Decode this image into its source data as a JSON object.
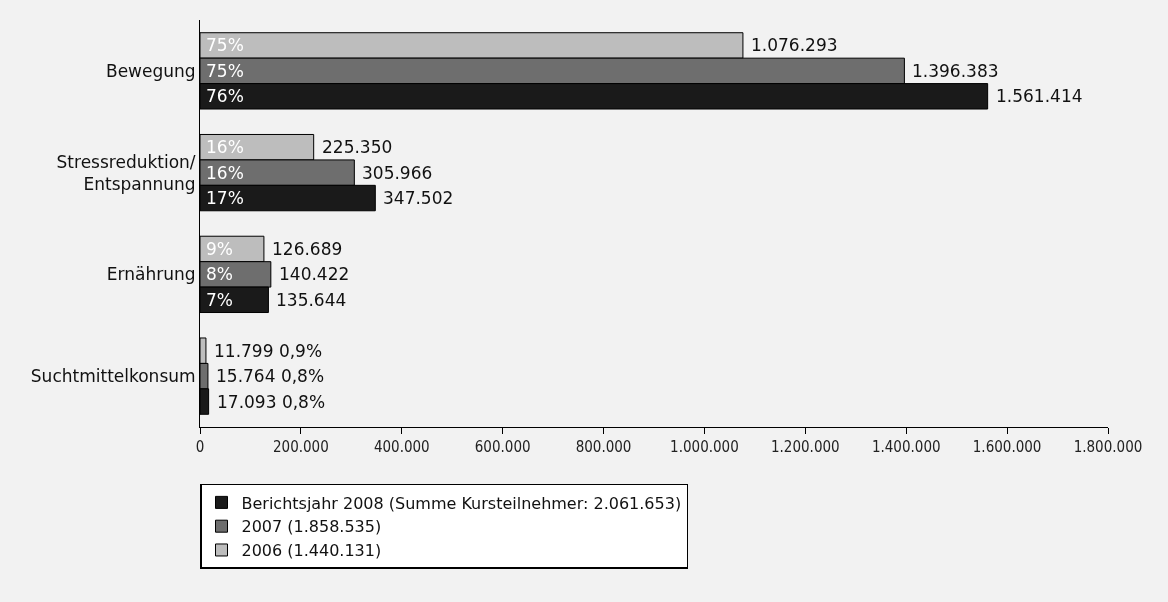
{
  "chart_data": {
    "type": "bar",
    "orientation": "horizontal",
    "categories": [
      "Bewegung",
      "Stressreduktion/\nEntspannung",
      "Ernährung",
      "Suchtmittelkonsum"
    ],
    "series": [
      {
        "name": "2006 (1.440.131)",
        "color": "#bdbdbd",
        "values": [
          1076293,
          225350,
          126689,
          11799
        ],
        "value_labels": [
          "75% 1.076.293",
          "16% 225.350",
          "9% 126.689",
          "11.799 0,9%"
        ]
      },
      {
        "name": "2007 (1.858.535)",
        "color": "#6e6e6e",
        "values": [
          1396383,
          305966,
          140422,
          15764
        ],
        "value_labels": [
          "75% 1.396.383",
          "16% 305.966",
          "8% 140.422",
          "15.764 0,8%"
        ]
      },
      {
        "name": "Berichtsjahr 2008 (Summe Kursteilnehmer: 2.061.653)",
        "color": "#1a1a1a",
        "values": [
          1561414,
          347502,
          135644,
          17093
        ],
        "value_labels": [
          "76% 1.561.414",
          "17% 347.502",
          "7% 135.644",
          "17.093 0,8%"
        ]
      }
    ],
    "xlim": [
      0,
      1800000
    ],
    "xticks": [
      0,
      {
        "value": 200000,
        "label": "200.000"
      },
      {
        "value": 400000,
        "label": "400.000"
      },
      {
        "value": 600000,
        "label": "600.000"
      },
      {
        "value": 800000,
        "label": "800.000"
      },
      {
        "value": 1000000,
        "label": "1.000.000"
      },
      {
        "value": 1200000,
        "label": "1.200.000"
      },
      {
        "value": 1400000,
        "label": "1.400.000"
      },
      {
        "value": 1600000,
        "label": "1.600.000"
      },
      {
        "value": 1800000,
        "label": "1.800.000"
      }
    ],
    "grid": false,
    "legend": "bottom"
  }
}
